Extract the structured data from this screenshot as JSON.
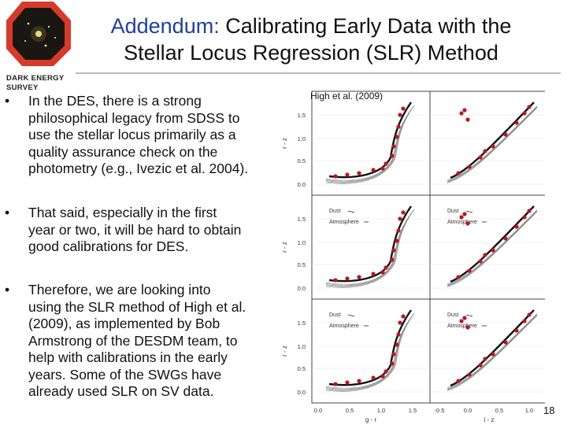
{
  "logo": {
    "line1": "DARK ENERGY",
    "line2": "SURVEY"
  },
  "title": {
    "accent": "Addendum:",
    "line1_rest": " Calibrating Early Data with the",
    "line2": "Stellar Locus Regression (SLR) Method"
  },
  "bullets": [
    {
      "marker": "•",
      "lines": [
        "In the DES, there is a strong",
        "philosophical legacy from SDSS to",
        "use the stellar locus primarily as a",
        "quality assurance check on the",
        "photometry (e.g., Ivezic et al. 2004)."
      ]
    },
    {
      "marker": "•",
      "lines": [
        "That said, especially in the first",
        "year or two, it will be hard to obtain",
        "good calibrations for DES."
      ]
    },
    {
      "marker": "•",
      "lines": [
        "Therefore, we are looking into",
        "using the SLR method of High et al.",
        "(2009), as implemented by Bob",
        "Armstrong of the DESDM team, to",
        "help with calibrations in the early",
        "years.  Some of the SWGs have",
        "already used SLR on SV data."
      ]
    }
  ],
  "figure": {
    "caption": "High et al. (2009)",
    "ylabel": "r - z",
    "xlabel_left": "g - r",
    "xlabel_right": "i - z",
    "yticks": [
      "1.5",
      "1.0",
      "0.5",
      "0.0"
    ],
    "xticks_left": [
      "0.0",
      "0.5",
      "1.0",
      "1.5"
    ],
    "xticks_right": [
      "-0.5",
      "0.0",
      "0.5",
      "1.0"
    ],
    "legend_dust": "Dust",
    "legend_atmosphere": "Atmosphere",
    "colors": {
      "locus": "#111111",
      "points": "#c0141c",
      "contours": "#8a8a8a"
    }
  },
  "page_number": "18"
}
